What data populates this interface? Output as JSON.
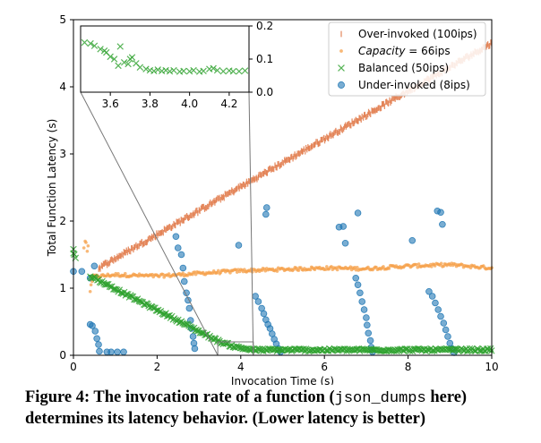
{
  "colors": {
    "over": "#dd6b35",
    "capacity": "#f5a04a",
    "balanced": "#2ca02c",
    "under": "#1f77b4",
    "bg": "#ffffff"
  },
  "caption": {
    "prefix": "Figure 4: The invocation rate of a function (",
    "code": "json_dumps",
    "suffix": " here) determines its latency behavior. (Lower latency is better)"
  },
  "chart_data": {
    "type": "scatter",
    "xlabel": "Invocation Time (s)",
    "ylabel": "Total Function Latency (s)",
    "xlim": [
      0,
      10
    ],
    "ylim": [
      0,
      5
    ],
    "xticks": [
      "0",
      "2",
      "4",
      "6",
      "8",
      "10"
    ],
    "yticks": [
      "0",
      "1",
      "2",
      "3",
      "4",
      "5"
    ],
    "legend_position": "top-right",
    "series": [
      {
        "name": "Over-invoked (100ips)",
        "marker": "vline",
        "color": "#dd6b35",
        "trend": [
          [
            0.6,
            1.3
          ],
          [
            10.0,
            4.65
          ]
        ],
        "noise": 0.03,
        "count": 420
      },
      {
        "name": "Capacity = 66ips",
        "name_prefix": "Capacity",
        "name_suffix": " = 66ips",
        "marker": "dot",
        "color": "#f5a04a",
        "trend": [
          [
            0.45,
            1.17
          ],
          [
            1.0,
            1.2
          ],
          [
            2.0,
            1.18
          ],
          [
            3.0,
            1.22
          ],
          [
            4.0,
            1.26
          ],
          [
            5.0,
            1.28
          ],
          [
            6.0,
            1.3
          ],
          [
            7.0,
            1.29
          ],
          [
            8.0,
            1.33
          ],
          [
            9.0,
            1.35
          ],
          [
            10.0,
            1.3
          ]
        ],
        "noise": 0.025,
        "count": 340,
        "extra_points": [
          [
            0.25,
            1.6
          ],
          [
            0.28,
            1.7
          ],
          [
            0.3,
            1.68
          ],
          [
            0.33,
            1.55
          ],
          [
            0.35,
            1.63
          ],
          [
            0.4,
            0.95
          ],
          [
            0.42,
            1.05
          ],
          [
            0.45,
            1.1
          ]
        ]
      },
      {
        "name": "Balanced (50ips)",
        "marker": "x",
        "color": "#2ca02c",
        "trend": [
          [
            0.4,
            1.18
          ],
          [
            3.5,
            0.2
          ],
          [
            3.9,
            0.12
          ],
          [
            4.3,
            0.08
          ],
          [
            10.0,
            0.08
          ]
        ],
        "noise": 0.02,
        "count": 330,
        "extra_points": [
          [
            0.0,
            1.58
          ],
          [
            0.02,
            1.5
          ],
          [
            0.05,
            1.45
          ],
          [
            0.0,
            1.52
          ]
        ]
      },
      {
        "name": "Under-invoked (8ips)",
        "marker": "circle",
        "color": "#1f77b4",
        "points": [
          [
            0.0,
            1.25
          ],
          [
            0.2,
            1.25
          ],
          [
            0.4,
            1.15
          ],
          [
            0.5,
            1.33
          ],
          [
            0.4,
            0.46
          ],
          [
            0.45,
            0.44
          ],
          [
            0.52,
            0.36
          ],
          [
            0.56,
            0.25
          ],
          [
            0.6,
            0.16
          ],
          [
            0.62,
            0.06
          ],
          [
            0.8,
            0.05
          ],
          [
            0.9,
            0.05
          ],
          [
            1.05,
            0.05
          ],
          [
            1.2,
            0.05
          ],
          [
            2.45,
            1.77
          ],
          [
            2.5,
            1.6
          ],
          [
            2.58,
            1.5
          ],
          [
            2.62,
            1.3
          ],
          [
            2.65,
            1.1
          ],
          [
            2.7,
            0.93
          ],
          [
            2.74,
            0.82
          ],
          [
            2.77,
            0.7
          ],
          [
            2.8,
            0.52
          ],
          [
            2.82,
            0.4
          ],
          [
            2.86,
            0.28
          ],
          [
            2.88,
            0.18
          ],
          [
            2.9,
            0.1
          ],
          [
            3.95,
            1.64
          ],
          [
            4.35,
            0.88
          ],
          [
            4.42,
            0.8
          ],
          [
            4.5,
            0.7
          ],
          [
            4.55,
            0.62
          ],
          [
            4.6,
            0.53
          ],
          [
            4.65,
            0.46
          ],
          [
            4.7,
            0.4
          ],
          [
            4.75,
            0.32
          ],
          [
            4.8,
            0.24
          ],
          [
            4.85,
            0.17
          ],
          [
            4.9,
            0.1
          ],
          [
            4.95,
            0.05
          ],
          [
            4.6,
            2.1
          ],
          [
            4.62,
            2.2
          ],
          [
            6.35,
            1.91
          ],
          [
            6.45,
            1.92
          ],
          [
            6.5,
            1.67
          ],
          [
            6.8,
            2.12
          ],
          [
            6.75,
            1.15
          ],
          [
            6.8,
            1.05
          ],
          [
            6.85,
            0.93
          ],
          [
            6.9,
            0.8
          ],
          [
            6.95,
            0.68
          ],
          [
            7.0,
            0.56
          ],
          [
            7.02,
            0.45
          ],
          [
            7.05,
            0.33
          ],
          [
            7.1,
            0.22
          ],
          [
            7.12,
            0.12
          ],
          [
            7.15,
            0.05
          ],
          [
            8.1,
            1.71
          ],
          [
            8.7,
            2.15
          ],
          [
            8.78,
            2.13
          ],
          [
            8.82,
            1.95
          ],
          [
            8.5,
            0.95
          ],
          [
            8.58,
            0.88
          ],
          [
            8.65,
            0.78
          ],
          [
            8.72,
            0.68
          ],
          [
            8.78,
            0.58
          ],
          [
            8.85,
            0.48
          ],
          [
            8.9,
            0.38
          ],
          [
            8.95,
            0.28
          ],
          [
            9.0,
            0.18
          ],
          [
            9.05,
            0.1
          ],
          [
            9.1,
            0.04
          ]
        ]
      }
    ],
    "inset": {
      "xlim": [
        3.45,
        4.3
      ],
      "ylim": [
        0.0,
        0.2
      ],
      "xticks": [
        "3.6",
        "3.8",
        "4.0",
        "4.2"
      ],
      "yticks": [
        "0.0",
        "0.1",
        "0.2"
      ],
      "zoom_region": {
        "x": [
          3.45,
          4.3
        ],
        "y": [
          0.0,
          0.2
        ]
      },
      "points": [
        [
          3.47,
          0.15
        ],
        [
          3.5,
          0.147
        ],
        [
          3.52,
          0.14
        ],
        [
          3.55,
          0.13
        ],
        [
          3.57,
          0.125
        ],
        [
          3.58,
          0.12
        ],
        [
          3.6,
          0.107
        ],
        [
          3.62,
          0.1
        ],
        [
          3.64,
          0.08
        ],
        [
          3.65,
          0.138
        ],
        [
          3.67,
          0.09
        ],
        [
          3.69,
          0.085
        ],
        [
          3.7,
          0.1
        ],
        [
          3.71,
          0.105
        ],
        [
          3.73,
          0.087
        ],
        [
          3.75,
          0.075
        ],
        [
          3.78,
          0.07
        ],
        [
          3.8,
          0.066
        ],
        [
          3.82,
          0.064
        ],
        [
          3.84,
          0.068
        ],
        [
          3.86,
          0.064
        ],
        [
          3.88,
          0.066
        ],
        [
          3.9,
          0.063
        ],
        [
          3.92,
          0.066
        ],
        [
          3.95,
          0.062
        ],
        [
          3.97,
          0.064
        ],
        [
          4.0,
          0.063
        ],
        [
          4.02,
          0.066
        ],
        [
          4.05,
          0.062
        ],
        [
          4.07,
          0.064
        ],
        [
          4.1,
          0.07
        ],
        [
          4.12,
          0.072
        ],
        [
          4.14,
          0.066
        ],
        [
          4.17,
          0.063
        ],
        [
          4.2,
          0.065
        ],
        [
          4.22,
          0.063
        ],
        [
          4.25,
          0.063
        ],
        [
          4.28,
          0.065
        ]
      ]
    }
  }
}
